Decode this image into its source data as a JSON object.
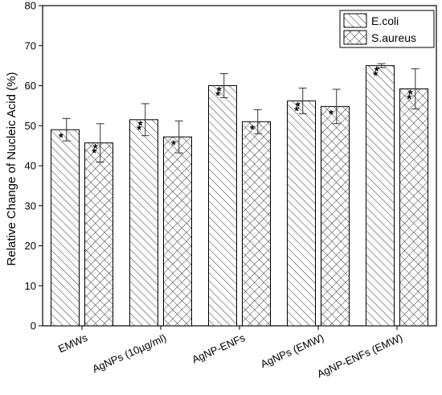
{
  "chart_data": {
    "type": "bar",
    "title": "",
    "xlabel": "",
    "ylabel": "Relative Change of Nucleic Acid (%)",
    "ylim": [
      0,
      80
    ],
    "yticks": [
      0,
      10,
      20,
      30,
      40,
      50,
      60,
      70,
      80
    ],
    "categories": [
      "EMWs",
      "AgNPs (10µg/ml)",
      "AgNP-ENFs",
      "AgNPs (EMW)",
      "AgNP-ENFs (EMW)"
    ],
    "legend_position": "top-right",
    "grid": false,
    "series": [
      {
        "name": "E.coli",
        "hatch": "diagonal",
        "values": [
          49,
          51.5,
          60,
          56.2,
          65
        ],
        "error": [
          2.8,
          4,
          3,
          3.2,
          0.5
        ],
        "significance": [
          "*",
          "**",
          "**",
          "**",
          "**"
        ]
      },
      {
        "name": "S.aureus",
        "hatch": "crosshatch",
        "values": [
          45.7,
          47.2,
          51,
          54.8,
          59.2
        ],
        "error": [
          4.8,
          4,
          3,
          4.3,
          5
        ],
        "significance": [
          "**",
          "*",
          "*",
          "*",
          "**"
        ]
      }
    ]
  }
}
